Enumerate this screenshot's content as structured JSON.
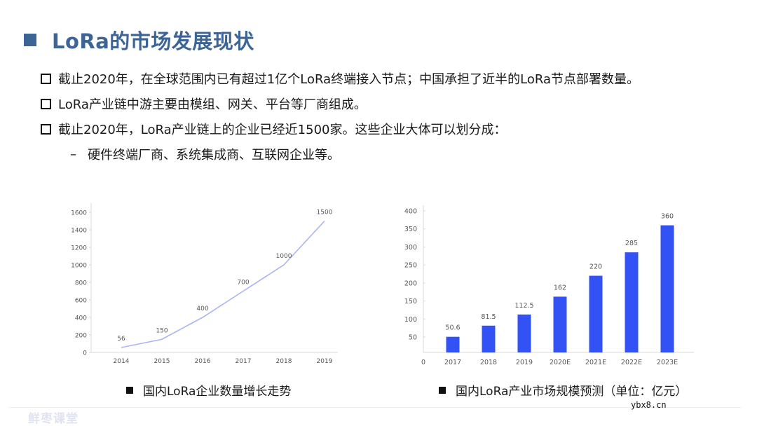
{
  "slide": {
    "title": "LoRa的市场发展现状",
    "title_color": "#3c6496",
    "bullets": [
      "截止2020年，在全球范围内已有超过1亿个LoRa终端接入节点；中国承担了近半的LoRa节点部署数量。",
      "LoRa产业链中游主要由模组、网关、平台等厂商组成。",
      "截止2020年，LoRa产业链上的企业已经近1500家。这些企业大体可以划分成："
    ],
    "sub_bullet": {
      "dash": "–",
      "text": "硬件终端厂商、系统集成商、互联网企业等。"
    },
    "footer": {
      "watermark_left": "鲜枣课堂",
      "watermark_right": "ybx8.cn"
    }
  },
  "chart_data": [
    {
      "type": "line",
      "title": "国内LoRa企业数量增长走势",
      "categories": [
        "2014",
        "2015",
        "2016",
        "2017",
        "2018",
        "2019"
      ],
      "values": [
        56,
        150,
        400,
        700,
        1000,
        1500
      ],
      "data_labels": [
        "56",
        "150",
        "400",
        "700",
        "1000",
        "1500"
      ],
      "yticks": [
        "0",
        "200",
        "400",
        "600",
        "800",
        "1000",
        "1200",
        "1400",
        "1600"
      ],
      "ylim": [
        0,
        1600
      ],
      "xlabel": "",
      "ylabel": "",
      "grid": false,
      "line_color": "#a9b4f5"
    },
    {
      "type": "bar",
      "title": "国内LoRa产业市场规模预测（单位：亿元）",
      "categories": [
        "2017",
        "2018",
        "2019",
        "2020E",
        "2021E",
        "2022E",
        "2023E"
      ],
      "values": [
        50.6,
        81.5,
        112.5,
        162,
        220,
        285,
        360
      ],
      "data_labels": [
        "50.6",
        "81.5",
        "112.5",
        "162",
        "220",
        "285",
        "360"
      ],
      "yticks": [
        "50",
        "100",
        "150",
        "200",
        "250",
        "300",
        "350",
        "400"
      ],
      "x_origin_label": "0",
      "ylim": [
        0,
        400
      ],
      "xlabel": "",
      "ylabel": "",
      "grid": false,
      "bar_color": "#3352f5"
    }
  ]
}
